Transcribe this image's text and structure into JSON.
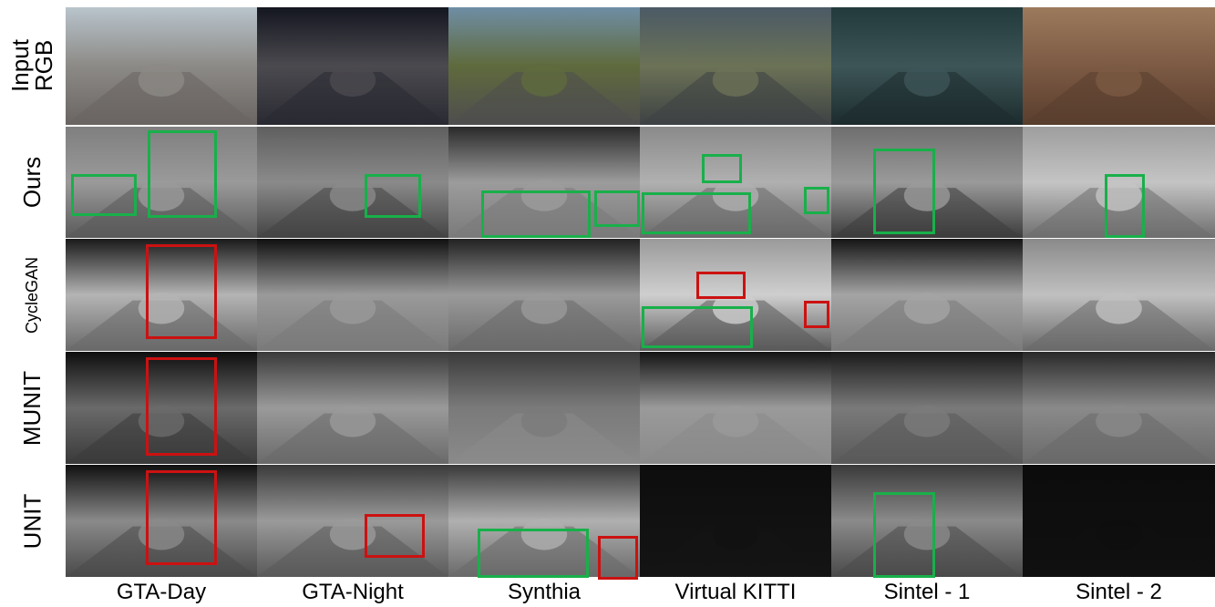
{
  "rows": [
    {
      "id": "input",
      "label_lines": [
        "Input",
        "RGB"
      ]
    },
    {
      "id": "ours",
      "label_lines": [
        "Ours"
      ]
    },
    {
      "id": "cyclegan",
      "label_lines": [
        "CycleGAN"
      ]
    },
    {
      "id": "munit",
      "label_lines": [
        "MUNIT"
      ]
    },
    {
      "id": "unit",
      "label_lines": [
        "UNIT"
      ]
    }
  ],
  "columns": [
    {
      "id": "gta-day",
      "label": "GTA-Day"
    },
    {
      "id": "gta-night",
      "label": "GTA-Night"
    },
    {
      "id": "synthia",
      "label": "Synthia"
    },
    {
      "id": "vkitti",
      "label": "Virtual KITTI"
    },
    {
      "id": "sintel1",
      "label": "Sintel - 1"
    },
    {
      "id": "sintel2",
      "label": "Sintel - 2"
    }
  ],
  "box_colors": {
    "good": "#18b04a",
    "bad": "#cc1111"
  },
  "cells": {
    "input": [
      {
        "sky": "#b9c4cc",
        "ground": "#6a6563",
        "mid": "#8c8a86"
      },
      {
        "sky": "#141620",
        "ground": "#2a2a33",
        "mid": "#4b4a4f"
      },
      {
        "sky": "#6f8ea5",
        "ground": "#4e4e4e",
        "mid": "#5f6a3d"
      },
      {
        "sky": "#4b5a66",
        "ground": "#3e4244",
        "mid": "#6b7256"
      },
      {
        "sky": "#223a3c",
        "ground": "#1d2c2e",
        "mid": "#3d5557"
      },
      {
        "sky": "#9b7a5c",
        "ground": "#5a3e2e",
        "mid": "#7c5a44"
      }
    ],
    "ours": [
      {
        "sky": "#7f7f7f",
        "ground": "#5a5a5a",
        "mid": "#9a9a9a"
      },
      {
        "sky": "#5f5f5f",
        "ground": "#444444",
        "mid": "#8a8a8a"
      },
      {
        "sky": "#2a2a2a",
        "ground": "#7a7a7a",
        "mid": "#9c9c9c"
      },
      {
        "sky": "#8a8a8a",
        "ground": "#6a6a6a",
        "mid": "#b0b0b0"
      },
      {
        "sky": "#6e6e6e",
        "ground": "#3c3c3c",
        "mid": "#9a9a9a"
      },
      {
        "sky": "#9e9e9e",
        "ground": "#6e6e6e",
        "mid": "#c4c4c4"
      }
    ],
    "cyclegan": [
      {
        "sky": "#1a1a1a",
        "ground": "#6a6a6a",
        "mid": "#b4b4b4"
      },
      {
        "sky": "#101010",
        "ground": "#7a7a7a",
        "mid": "#9a9a9a"
      },
      {
        "sky": "#222222",
        "ground": "#6a6a6a",
        "mid": "#9a9a9a"
      },
      {
        "sky": "#9a9a9a",
        "ground": "#5a5a5a",
        "mid": "#cfcfcf"
      },
      {
        "sky": "#151515",
        "ground": "#7a7a7a",
        "mid": "#a4a4a4"
      },
      {
        "sky": "#8a8a8a",
        "ground": "#6a6a6a",
        "mid": "#c0c0c0"
      }
    ],
    "munit": [
      {
        "sky": "#0e0e0e",
        "ground": "#3a3a3a",
        "mid": "#6a6a6a"
      },
      {
        "sky": "#3a3a3a",
        "ground": "#6a6a6a",
        "mid": "#9a9a9a"
      },
      {
        "sky": "#3a3a3a",
        "ground": "#8a8a8a",
        "mid": "#7a7a7a"
      },
      {
        "sky": "#141414",
        "ground": "#8a8a8a",
        "mid": "#9a9a9a"
      },
      {
        "sky": "#1a1a1a",
        "ground": "#5a5a5a",
        "mid": "#7a7a7a"
      },
      {
        "sky": "#2a2a2a",
        "ground": "#6a6a6a",
        "mid": "#8a8a8a"
      }
    ],
    "unit": [
      {
        "sky": "#101010",
        "ground": "#4a4a4a",
        "mid": "#8a8a8a"
      },
      {
        "sky": "#3a3a3a",
        "ground": "#5a5a5a",
        "mid": "#9a9a9a"
      },
      {
        "sky": "#3a3a3a",
        "ground": "#6a6a6a",
        "mid": "#b0b0b0"
      },
      {
        "sky": "#0d0d0d",
        "ground": "#141414",
        "mid": "#111111"
      },
      {
        "sky": "#3a3a3a",
        "ground": "#4a4a4a",
        "mid": "#8a8a8a"
      },
      {
        "sky": "#0c0c0c",
        "ground": "#101010",
        "mid": "#0e0e0e"
      }
    ]
  },
  "boxes": [
    {
      "row": "ours",
      "col": 0,
      "kind": "good"
    },
    {
      "row": "ours",
      "col": 0,
      "kind": "good"
    },
    {
      "row": "ours",
      "col": 1,
      "kind": "good"
    },
    {
      "row": "ours",
      "col": 2,
      "kind": "good"
    },
    {
      "row": "ours",
      "col": 2,
      "kind": "good"
    },
    {
      "row": "ours",
      "col": 3,
      "kind": "good"
    },
    {
      "row": "ours",
      "col": 3,
      "kind": "good"
    },
    {
      "row": "ours",
      "col": 3,
      "kind": "good"
    },
    {
      "row": "ours",
      "col": 4,
      "kind": "good"
    },
    {
      "row": "ours",
      "col": 5,
      "kind": "good"
    },
    {
      "row": "cyclegan",
      "col": 0,
      "kind": "bad"
    },
    {
      "row": "cyclegan",
      "col": 3,
      "kind": "bad"
    },
    {
      "row": "cyclegan",
      "col": 3,
      "kind": "bad"
    },
    {
      "row": "cyclegan",
      "col": 3,
      "kind": "good"
    },
    {
      "row": "munit",
      "col": 0,
      "kind": "bad"
    },
    {
      "row": "unit",
      "col": 0,
      "kind": "bad"
    },
    {
      "row": "unit",
      "col": 1,
      "kind": "bad"
    },
    {
      "row": "unit",
      "col": 2,
      "kind": "good"
    },
    {
      "row": "unit",
      "col": 2,
      "kind": "bad"
    },
    {
      "row": "unit",
      "col": 4,
      "kind": "good"
    }
  ]
}
